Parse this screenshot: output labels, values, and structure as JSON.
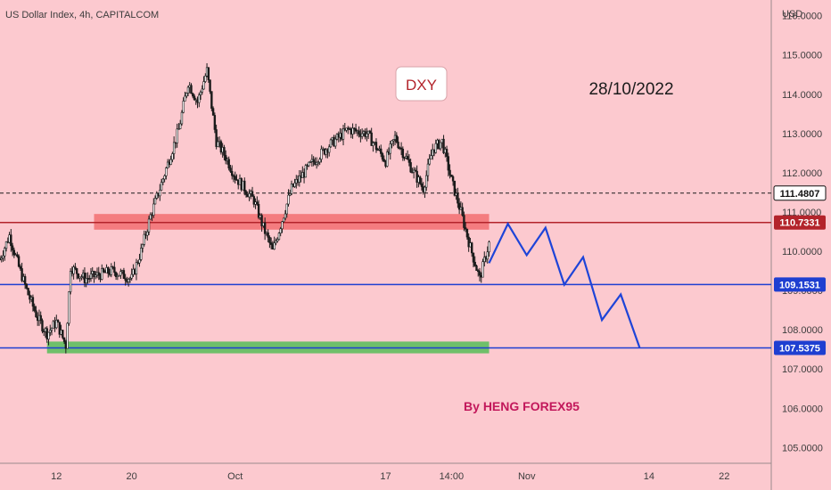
{
  "header": {
    "symbol_line": "US Dollar Index, 4h, CAPITALCOM",
    "currency": "USD"
  },
  "annotations": {
    "ticker_box": "DXY",
    "date_text": "28/10/2022",
    "author_text": "By HENG FOREX95"
  },
  "colors": {
    "background": "#fcc9cf",
    "candle": "#1b1b1b",
    "blue_line": "#1e3fd1",
    "red_line": "#b3242b",
    "resistance_zone": "#f47c7f",
    "support_zone": "#6fbf6a",
    "projection": "#1e44d8",
    "author_color": "#c2185b",
    "date_color": "#1b1b1b"
  },
  "chart_data": {
    "type": "candlestick",
    "title": "US Dollar Index, 4h, CAPITALCOM",
    "ylabel": "USD",
    "ylim": [
      104.6,
      116.4
    ],
    "xlim": [
      "2022-09-06",
      "2022-11-27"
    ],
    "y_ticks": [
      "105.0000",
      "106.0000",
      "107.0000",
      "108.0000",
      "109.0000",
      "110.0000",
      "111.0000",
      "112.0000",
      "113.0000",
      "114.0000",
      "115.0000",
      "116.0000"
    ],
    "x_ticks": [
      {
        "date": "2022-09-12",
        "label": "12"
      },
      {
        "date": "2022-09-20",
        "label": "20"
      },
      {
        "date": "2022-10-01",
        "label": "Oct"
      },
      {
        "date": "2022-10-17",
        "label": "17"
      },
      {
        "date": "2022-10-24",
        "label": "14:00"
      },
      {
        "date": "2022-11-01",
        "label": "Nov"
      },
      {
        "date": "2022-11-14",
        "label": "14"
      },
      {
        "date": "2022-11-22",
        "label": "22"
      }
    ],
    "price_path": [
      [
        "2022-09-06",
        109.8
      ],
      [
        "2022-09-07",
        110.4
      ],
      [
        "2022-09-08",
        109.6
      ],
      [
        "2022-09-09",
        108.9
      ],
      [
        "2022-09-10",
        108.3
      ],
      [
        "2022-09-11",
        107.9
      ],
      [
        "2022-09-12",
        108.2
      ],
      [
        "2022-09-13",
        107.6
      ],
      [
        "2022-09-13.5",
        109.6
      ],
      [
        "2022-09-15",
        109.3
      ],
      [
        "2022-09-18",
        109.5
      ],
      [
        "2022-09-20",
        109.3
      ],
      [
        "2022-09-21",
        110.0
      ],
      [
        "2022-09-22",
        110.9
      ],
      [
        "2022-09-23",
        111.6
      ],
      [
        "2022-09-25",
        113.1
      ],
      [
        "2022-09-26",
        114.3
      ],
      [
        "2022-09-27",
        113.8
      ],
      [
        "2022-09-28",
        114.6
      ],
      [
        "2022-09-29",
        112.8
      ],
      [
        "2022-09-30",
        112.4
      ],
      [
        "2022-10-01",
        111.9
      ],
      [
        "2022-10-02",
        111.6
      ],
      [
        "2022-10-03",
        111.3
      ],
      [
        "2022-10-04",
        110.6
      ],
      [
        "2022-10-05",
        110.0
      ],
      [
        "2022-10-06",
        110.8
      ],
      [
        "2022-10-07",
        111.6
      ],
      [
        "2022-10-09",
        112.2
      ],
      [
        "2022-10-11",
        112.7
      ],
      [
        "2022-10-13",
        113.1
      ],
      [
        "2022-10-15",
        113.0
      ],
      [
        "2022-10-17",
        112.3
      ],
      [
        "2022-10-18",
        112.9
      ],
      [
        "2022-10-20",
        112.0
      ],
      [
        "2022-10-21",
        111.6
      ],
      [
        "2022-10-22",
        112.6
      ],
      [
        "2022-10-23",
        112.8
      ],
      [
        "2022-10-24",
        111.8
      ],
      [
        "2022-10-25",
        111.0
      ],
      [
        "2022-10-26",
        110.1
      ],
      [
        "2022-10-27",
        109.3
      ],
      [
        "2022-10-28",
        110.2
      ]
    ],
    "levels": [
      {
        "label": "111.4807",
        "value": 111.4807,
        "style": "dashed",
        "color": "#1b1b1b"
      },
      {
        "label": "110.7331",
        "value": 110.7331,
        "style": "solid",
        "color": "#b3242b"
      },
      {
        "label": "109.1531",
        "value": 109.1531,
        "style": "solid",
        "color": "#1e3fd1"
      },
      {
        "label": "107.5375",
        "value": 107.5375,
        "style": "solid",
        "color": "#1e3fd1"
      }
    ],
    "zones": [
      {
        "name": "resistance",
        "from": "2022-09-16",
        "to": "2022-10-28",
        "low": 110.55,
        "high": 110.95,
        "color": "#f47c7f"
      },
      {
        "name": "support",
        "from": "2022-09-11",
        "to": "2022-10-28",
        "low": 107.4,
        "high": 107.7,
        "color": "#6fbf6a"
      }
    ],
    "projection": [
      [
        "2022-10-28",
        109.7
      ],
      [
        "2022-10-30",
        110.7
      ],
      [
        "2022-11-01",
        109.9
      ],
      [
        "2022-11-03",
        110.6
      ],
      [
        "2022-11-05",
        109.15
      ],
      [
        "2022-11-07",
        109.85
      ],
      [
        "2022-11-09",
        108.25
      ],
      [
        "2022-11-11",
        108.9
      ],
      [
        "2022-11-13",
        107.55
      ]
    ]
  }
}
